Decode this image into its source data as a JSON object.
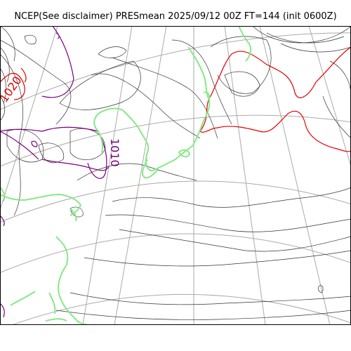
{
  "title": "NCEP(See disclaimer) PRESmean 2025/09/12 00Z FT=144 (init 0600Z)",
  "contour_labels": {
    "label_1010": "1010",
    "label_1020": "1020"
  },
  "colors": {
    "isobar": "#333333",
    "isobar_1010": "#7a0080",
    "isobar_1020": "#e00000",
    "coastline": "#88e888",
    "graticule": "#aaaaaa",
    "frame": "#000000"
  }
}
